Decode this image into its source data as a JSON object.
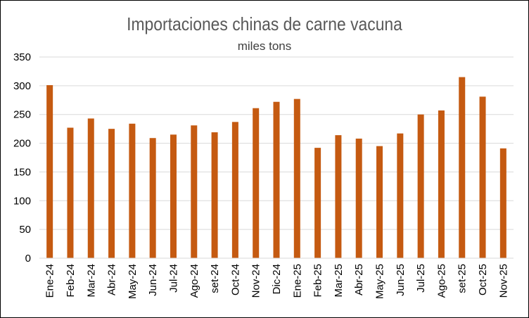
{
  "chart_data": {
    "type": "bar",
    "title": "Importaciones chinas de carne vacuna",
    "subtitle": "miles tons",
    "xlabel": "",
    "ylabel": "",
    "ylim": [
      0,
      350
    ],
    "yticks": [
      0,
      50,
      100,
      150,
      200,
      250,
      300,
      350
    ],
    "grid": true,
    "legend": "none",
    "bar_color": "#C55A11",
    "categories": [
      "Ene-24",
      "Feb-24",
      "Mar-24",
      "Abr-24",
      "May-24",
      "Jun-24",
      "Jul-24",
      "Ago-24",
      "set-24",
      "Oct-24",
      "Nov-24",
      "Dic-24",
      "Ene-25",
      "Feb-25",
      "Mar-25",
      "Abr-25",
      "May-25",
      "Jun-25",
      "Jul-25",
      "Ago-25",
      "set-25",
      "Oct-25",
      "Nov-25"
    ],
    "values": [
      301,
      227,
      243,
      225,
      234,
      209,
      215,
      231,
      219,
      237,
      261,
      272,
      277,
      192,
      214,
      208,
      195,
      217,
      250,
      257,
      315,
      281,
      191
    ]
  }
}
